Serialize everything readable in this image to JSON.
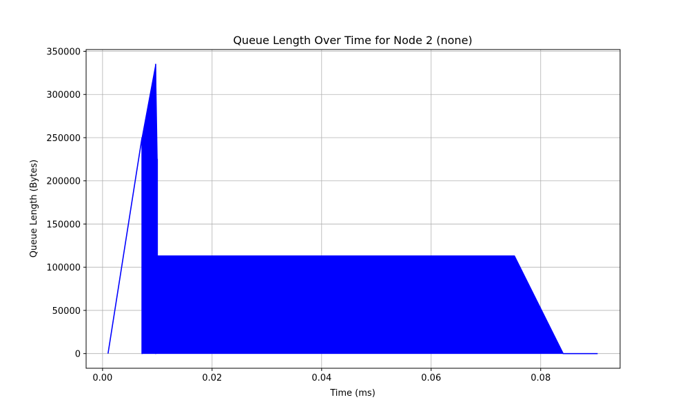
{
  "chart_data": {
    "type": "line",
    "title": "Queue Length Over Time for Node 2 (none)",
    "xlabel": "Time (ms)",
    "ylabel": "Queue Length (Bytes)",
    "xlim": [
      -0.003,
      0.0945
    ],
    "ylim": [
      -17000,
      352000
    ],
    "x_ticks": [
      0.0,
      0.02,
      0.04,
      0.06,
      0.08
    ],
    "x_tick_labels": [
      "0.00",
      "0.02",
      "0.04",
      "0.06",
      "0.08"
    ],
    "y_ticks": [
      0,
      50000,
      100000,
      150000,
      200000,
      250000,
      300000,
      350000
    ],
    "y_tick_labels": [
      "0",
      "50000",
      "100000",
      "150000",
      "200000",
      "250000",
      "300000",
      "350000"
    ],
    "grid": true,
    "legend": "none",
    "series": [
      {
        "color": "#0000ff",
        "x": [
          0.001,
          0.0072,
          0.0072,
          0.0097,
          0.0097,
          0.01,
          0.01,
          0.0752,
          0.0841,
          0.0904
        ],
        "y": [
          0,
          250000,
          0,
          335000,
          0,
          225000,
          113000,
          113000,
          0,
          0
        ],
        "fill_region": {
          "x": [
            0.0072,
            0.0072,
            0.0097,
            0.01,
            0.01,
            0.0752,
            0.0841,
            0.0072
          ],
          "y": [
            0,
            250000,
            335000,
            225000,
            113000,
            113000,
            0,
            0
          ]
        }
      }
    ]
  }
}
